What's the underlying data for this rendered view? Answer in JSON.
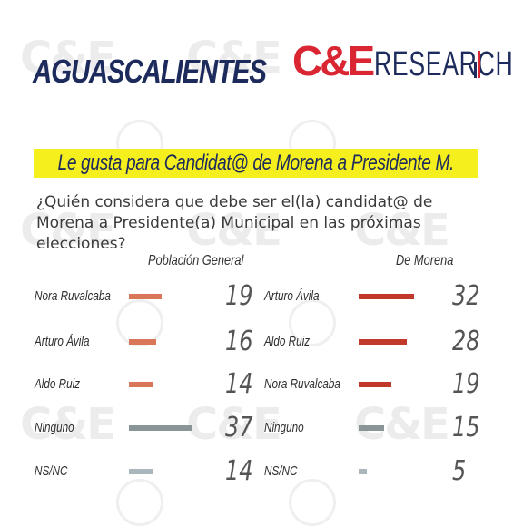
{
  "header": {
    "region": "AGUASCALIENTES",
    "brand_mark": "C&E",
    "brand_word": "RESEARCH"
  },
  "banner": {
    "text": "Le gusta para Candidat@ de Morena a Presidente M."
  },
  "question": "¿Quién considera que debe ser el(la) candidat@ de Morena a Presidente(a) Municipal en las próximas elecciones?",
  "watermark": {
    "text": "C&E",
    "color": "#ececec"
  },
  "colors": {
    "candidate_general": "#d9765a",
    "ninguno": "#8a9598",
    "nsnc": "#a9b7bd",
    "morena": "#c0392b",
    "morena_ninguno": "#8a9598",
    "morena_nsnc": "#a9b7bd"
  },
  "chart_data": [
    {
      "type": "bar",
      "title": "Población General",
      "categories": [
        "Nora Ruvalcaba",
        "Arturo Ávila",
        "Aldo Ruiz",
        "Ninguno",
        "NS/NC"
      ],
      "values": [
        19,
        16,
        14,
        37,
        14
      ],
      "colors": [
        "#d9765a",
        "#d9765a",
        "#d9765a",
        "#8a9598",
        "#a9b7bd"
      ],
      "max": 37
    },
    {
      "type": "bar",
      "title": "De Morena",
      "categories": [
        "Arturo Ávila",
        "Aldo Ruiz",
        "Nora Ruvalcaba",
        "Ninguno",
        "NS/NC"
      ],
      "values": [
        32,
        28,
        19,
        15,
        5
      ],
      "colors": [
        "#c0392b",
        "#c0392b",
        "#c0392b",
        "#8a9598",
        "#a9b7bd"
      ],
      "max": 37
    }
  ]
}
